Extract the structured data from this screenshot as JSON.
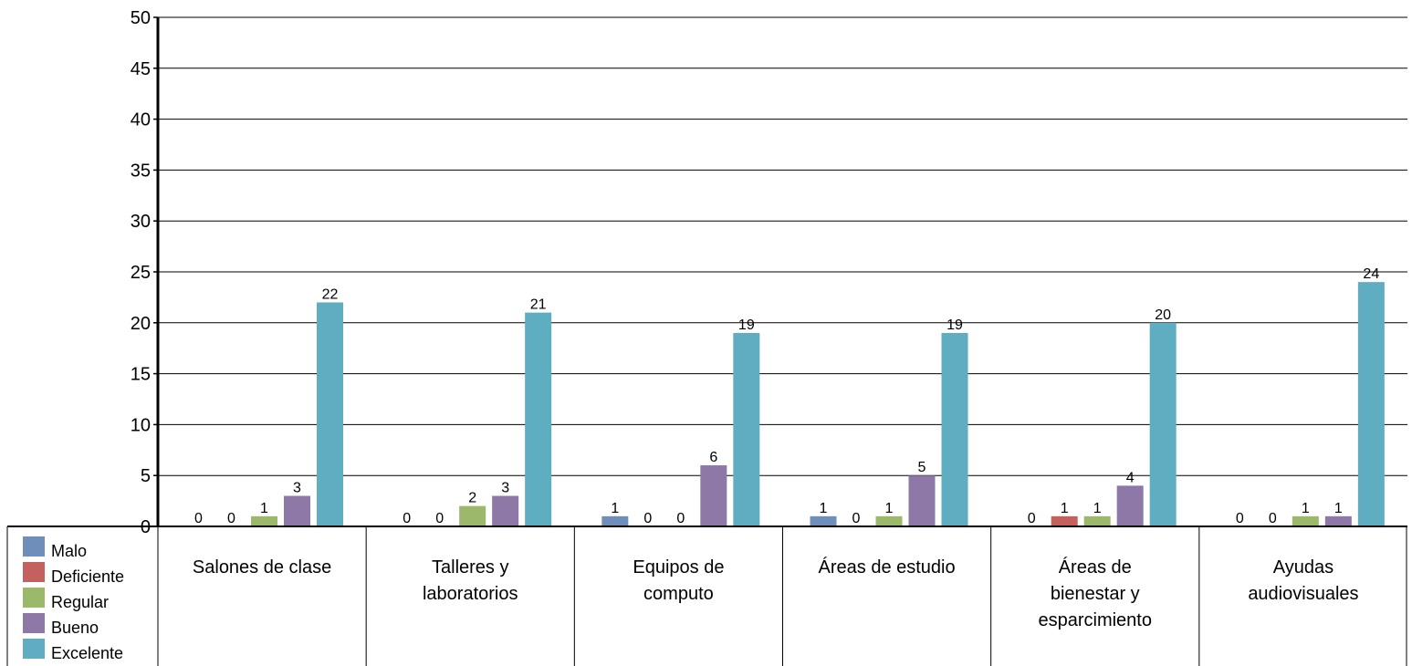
{
  "chart_data": {
    "type": "bar",
    "categories": [
      [
        "Salones de clase"
      ],
      [
        "Talleres y",
        "laboratorios"
      ],
      [
        "Equipos de",
        "computo"
      ],
      [
        "Áreas de estudio"
      ],
      [
        "Áreas de",
        "bienestar y",
        "esparcimiento"
      ],
      [
        "Ayudas",
        "audiovisuales"
      ]
    ],
    "series": [
      {
        "name": "Malo",
        "color": "#6f8fba",
        "values": [
          0,
          0,
          1,
          1,
          0,
          0
        ]
      },
      {
        "name": "Deficiente",
        "color": "#c4605e",
        "values": [
          0,
          0,
          0,
          0,
          1,
          0
        ]
      },
      {
        "name": "Regular",
        "color": "#9cb86a",
        "values": [
          1,
          2,
          0,
          1,
          1,
          1
        ]
      },
      {
        "name": "Bueno",
        "color": "#8d78a8",
        "values": [
          3,
          3,
          6,
          5,
          4,
          1
        ]
      },
      {
        "name": "Excelente",
        "color": "#5fadc0",
        "values": [
          22,
          21,
          19,
          19,
          20,
          24
        ]
      }
    ],
    "ylim": [
      0,
      50
    ],
    "yticks": [
      0,
      5,
      10,
      15,
      20,
      25,
      30,
      35,
      40,
      45,
      50
    ],
    "grid": true,
    "legend": "bottom-left, inside data table",
    "data_labels": true,
    "title": "",
    "xlabel": "",
    "ylabel": ""
  }
}
